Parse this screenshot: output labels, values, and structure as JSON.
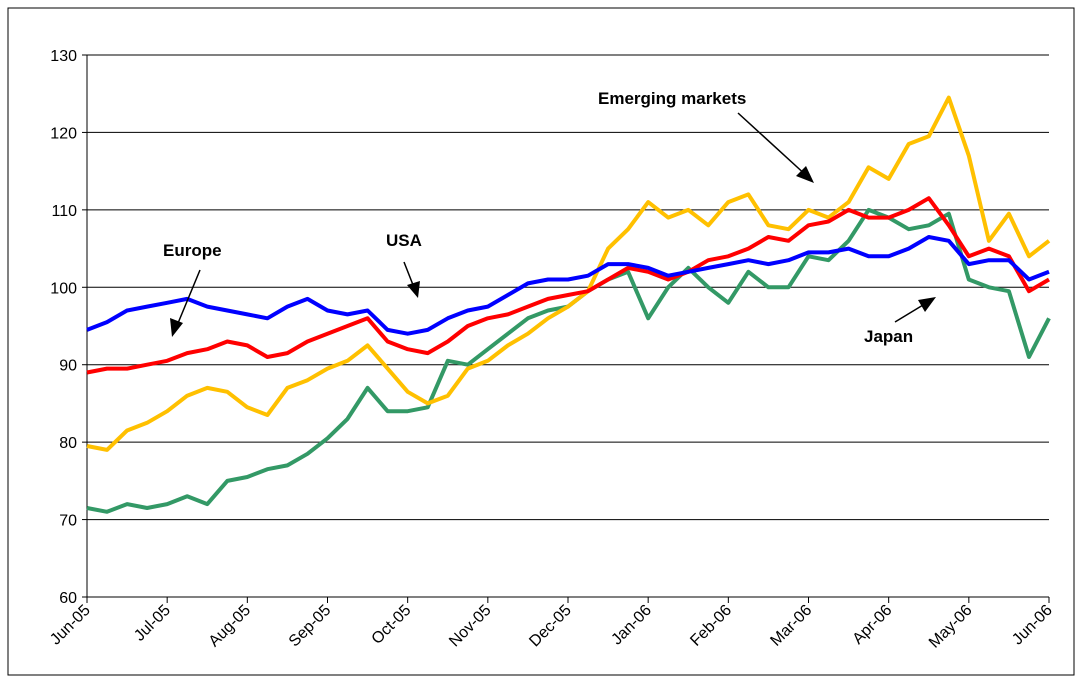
{
  "chart_data": {
    "type": "line",
    "categories": [
      "Jun-05",
      null,
      null,
      null,
      "Jul-05",
      null,
      null,
      null,
      "Aug-05",
      null,
      null,
      null,
      "Sep-05",
      null,
      null,
      null,
      "Oct-05",
      null,
      null,
      null,
      "Nov-05",
      null,
      null,
      null,
      "Dec-05",
      null,
      null,
      null,
      "Jan-06",
      null,
      null,
      null,
      "Feb-06",
      null,
      null,
      null,
      "Mar-06",
      null,
      null,
      null,
      "Apr-06",
      null,
      null,
      null,
      "May-06",
      null,
      null,
      null,
      "Jun-06"
    ],
    "series": [
      {
        "name": "Japan",
        "color": "#339966",
        "values": [
          71.5,
          71,
          72,
          71.5,
          72,
          73,
          72,
          75,
          75.5,
          76.5,
          77,
          78.5,
          80.5,
          83,
          87,
          84,
          84,
          84.5,
          90.5,
          90,
          92,
          94,
          96,
          97,
          97.5,
          99.5,
          101,
          102,
          96,
          100,
          102.5,
          100,
          98,
          102,
          100,
          100,
          104,
          103.5,
          106,
          110,
          109,
          107.5,
          108,
          109.5,
          101,
          100,
          99.5,
          91,
          96
        ]
      },
      {
        "name": "Emerging markets",
        "color": "#ffc000",
        "values": [
          79.5,
          79,
          81.5,
          82.5,
          84,
          86,
          87,
          86.5,
          84.5,
          83.5,
          87,
          88,
          89.5,
          90.5,
          92.5,
          89.5,
          86.5,
          85,
          86,
          89.5,
          90.5,
          92.5,
          94,
          96,
          97.5,
          99.5,
          105,
          107.5,
          111,
          109,
          110,
          108,
          111,
          112,
          108,
          107.5,
          110,
          109,
          111,
          115.5,
          114,
          118.5,
          119.5,
          124.5,
          117,
          106,
          109.5,
          104,
          106
        ]
      },
      {
        "name": "Europe",
        "color": "#ff0000",
        "values": [
          89,
          89.5,
          89.5,
          90,
          90.5,
          91.5,
          92,
          93,
          92.5,
          91,
          91.5,
          93,
          94,
          95,
          96,
          93,
          92,
          91.5,
          93,
          95,
          96,
          96.5,
          97.5,
          98.5,
          99,
          99.5,
          101,
          102.5,
          102,
          101,
          102,
          103.5,
          104,
          105,
          106.5,
          106,
          108,
          108.5,
          110,
          109,
          109,
          110,
          111.5,
          108,
          104,
          105,
          104,
          99.5,
          101
        ]
      },
      {
        "name": "USA",
        "color": "#0000ff",
        "values": [
          94.5,
          95.5,
          97,
          97.5,
          98,
          98.5,
          97.5,
          97,
          96.5,
          96,
          97.5,
          98.5,
          97,
          96.5,
          97,
          94.5,
          94,
          94.5,
          96,
          97,
          97.5,
          99,
          100.5,
          101,
          101,
          101.5,
          103,
          103,
          102.5,
          101.5,
          102,
          102.5,
          103,
          103.5,
          103,
          103.5,
          104.5,
          104.5,
          105,
          104,
          104,
          105,
          106.5,
          106,
          103,
          103.5,
          103.5,
          101,
          102
        ]
      }
    ],
    "annotations": [
      "Emerging markets",
      "USA",
      "Europe",
      "Japan"
    ],
    "ylim": [
      60,
      130
    ],
    "yticks": [
      60,
      70,
      80,
      90,
      100,
      110,
      120,
      130
    ],
    "grid": true
  }
}
